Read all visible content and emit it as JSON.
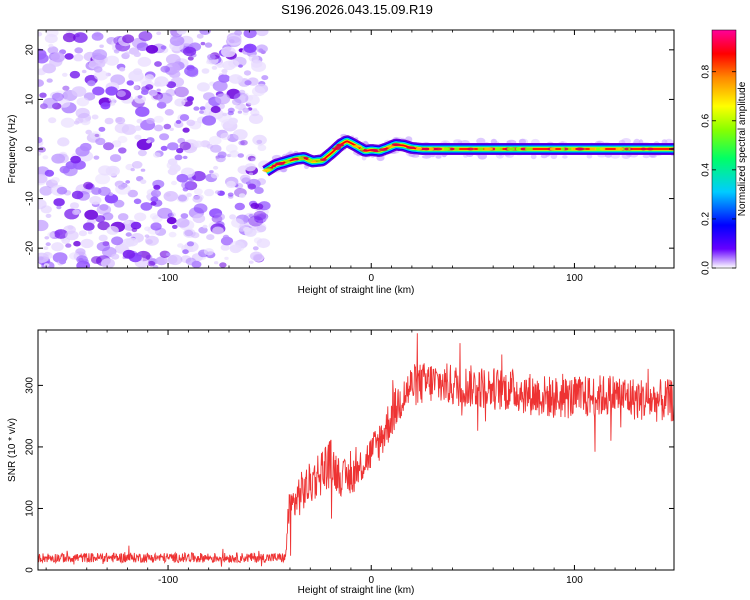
{
  "title": "S196.2026.043.15.09.R19",
  "chart_data": [
    {
      "type": "heatmap",
      "title": "S196.2026.043.15.09.R19",
      "xlabel": "Height of straight line (km)",
      "ylabel": "Frequency (Hz)",
      "xlim": [
        -164,
        149
      ],
      "ylim": [
        -24,
        24
      ],
      "xticks": [
        -100,
        0,
        100
      ],
      "yticks": [
        -20,
        -10,
        0,
        10,
        20
      ],
      "noise_region_x": [
        -164,
        -52
      ],
      "signal_track": {
        "x": [
          -52,
          -47,
          -42,
          -37,
          -33,
          -29,
          -24,
          -19,
          -15,
          -12,
          -9,
          -6,
          -3,
          0,
          4,
          8,
          12,
          16,
          20,
          25,
          149
        ],
        "freq": [
          -4.5,
          -3.2,
          -2.6,
          -2.0,
          -1.8,
          -2.5,
          -2.3,
          -0.6,
          0.9,
          1.6,
          1.0,
          0.3,
          -0.4,
          -0.2,
          -0.4,
          0.2,
          0.9,
          0.7,
          0.2,
          0.0,
          0.0
        ]
      },
      "colorbar": {
        "label": "Normalized spectral amplitude",
        "range": [
          0.0,
          0.97
        ],
        "ticks": [
          0.0,
          0.2,
          0.4,
          0.6,
          0.8
        ],
        "tick_labels": [
          "0.0",
          "0.2",
          "0.4",
          "0.6",
          "0.8"
        ],
        "colors": [
          "#ffffff",
          "#6600ff",
          "#0000ff",
          "#00ccff",
          "#00ff66",
          "#88ff00",
          "#ffff00",
          "#ff8800",
          "#ff0000",
          "#ff0099"
        ]
      }
    },
    {
      "type": "line",
      "xlabel": "Height of straight line (km)",
      "ylabel": "SNR (10 * v/v)",
      "xlim": [
        -164,
        149
      ],
      "ylim": [
        0,
        390
      ],
      "xticks": [
        -100,
        0,
        100
      ],
      "yticks": [
        0,
        100,
        200,
        300
      ],
      "series": [
        {
          "name": "SNR",
          "color": "#ee3333",
          "envelope_x": [
            -164,
            -42,
            -41,
            -36,
            -30,
            -25,
            -20,
            -15,
            -10,
            -5,
            0,
            5,
            10,
            15,
            20,
            30,
            40,
            50,
            60,
            70,
            80,
            90,
            100,
            110,
            120,
            130,
            140,
            149
          ],
          "envelope_mean": [
            20,
            20,
            90,
            120,
            140,
            160,
            175,
            150,
            150,
            170,
            190,
            215,
            250,
            280,
            300,
            305,
            300,
            298,
            295,
            292,
            285,
            280,
            280,
            282,
            285,
            278,
            275,
            275
          ],
          "noise_amplitude": [
            8,
            8,
            30,
            35,
            35,
            40,
            40,
            30,
            30,
            30,
            30,
            35,
            35,
            35,
            35,
            35,
            35,
            35,
            35,
            35,
            35,
            35,
            35,
            35,
            35,
            35,
            35,
            35
          ]
        }
      ]
    }
  ]
}
